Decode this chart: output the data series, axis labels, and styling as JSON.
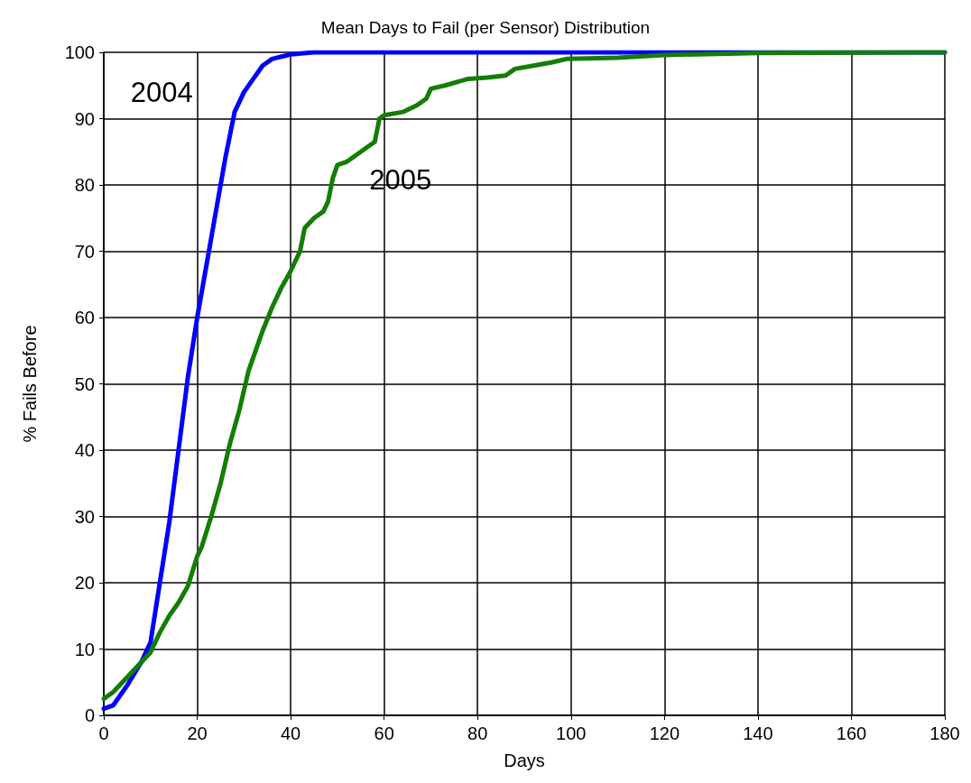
{
  "chart_data": {
    "type": "line",
    "title": "Mean Days to Fail (per Sensor) Distribution",
    "xlabel": "Days",
    "ylabel": "% Fails Before",
    "xlim": [
      0,
      180
    ],
    "xticks": [
      0,
      20,
      40,
      60,
      80,
      100,
      120,
      140,
      160,
      180
    ],
    "ylim": [
      0,
      100
    ],
    "yticks": [
      0,
      10,
      20,
      30,
      40,
      50,
      60,
      70,
      80,
      90,
      100
    ],
    "grid": true,
    "marker": "none",
    "line_style": "solid",
    "series": [
      {
        "name": "2004",
        "color": "#0000ff",
        "x": [
          0,
          2,
          5,
          8,
          10,
          12,
          14,
          16,
          18,
          20,
          22,
          24,
          26,
          28,
          30,
          32,
          34,
          36,
          40,
          45,
          180
        ],
        "values": [
          1,
          1.5,
          4.5,
          8,
          11,
          20,
          29,
          40,
          51,
          60,
          68,
          76,
          84,
          91,
          94,
          96,
          98,
          99,
          99.7,
          100,
          100
        ]
      },
      {
        "name": "2005",
        "color": "#137d06",
        "x": [
          0,
          2,
          4,
          6,
          8,
          10,
          12,
          14,
          16,
          18,
          20,
          21,
          23,
          25,
          27,
          29,
          31,
          33,
          34,
          36,
          38,
          40,
          42,
          43,
          45,
          47,
          48,
          49,
          50,
          52,
          54,
          56,
          58,
          59,
          60,
          64,
          67,
          69,
          70,
          73,
          78,
          82,
          86,
          88,
          92,
          96,
          99,
          110,
          120,
          140,
          180
        ],
        "values": [
          2.5,
          3.5,
          5,
          6.5,
          8,
          9.5,
          12.5,
          15,
          17,
          19.5,
          24,
          25.5,
          30,
          35,
          41,
          46,
          52,
          56,
          58,
          61.5,
          64.5,
          67,
          70,
          73.5,
          75,
          76,
          77.5,
          81,
          83,
          83.5,
          84.5,
          85.5,
          86.5,
          90,
          90.5,
          91,
          92,
          93,
          94.5,
          95,
          96,
          96.2,
          96.5,
          97.5,
          98,
          98.5,
          99,
          99.2,
          99.6,
          99.9,
          100
        ]
      }
    ]
  }
}
